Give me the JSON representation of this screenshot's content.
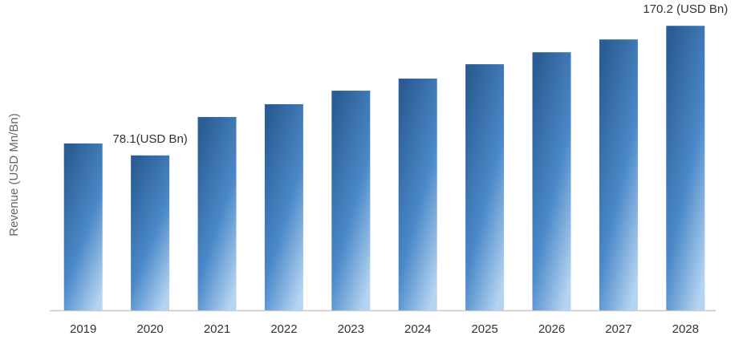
{
  "chart_data": {
    "type": "bar",
    "y_label": "Revenue (USD Mn/Bn)",
    "categories": [
      "2019",
      "2020",
      "2021",
      "2022",
      "2023",
      "2024",
      "2025",
      "2026",
      "2027",
      "2028"
    ],
    "values": [
      86.6,
      78.1,
      105.4,
      114.5,
      124.1,
      132.7,
      142.9,
      151.4,
      160.5,
      170.2
    ],
    "value_labels": [
      null,
      "78.1(USD Bn)",
      null,
      null,
      null,
      null,
      null,
      null,
      null,
      "170.2 (USD Bn)"
    ],
    "color": "#2b5d94",
    "ylim": [
      -32,
      180
    ]
  }
}
